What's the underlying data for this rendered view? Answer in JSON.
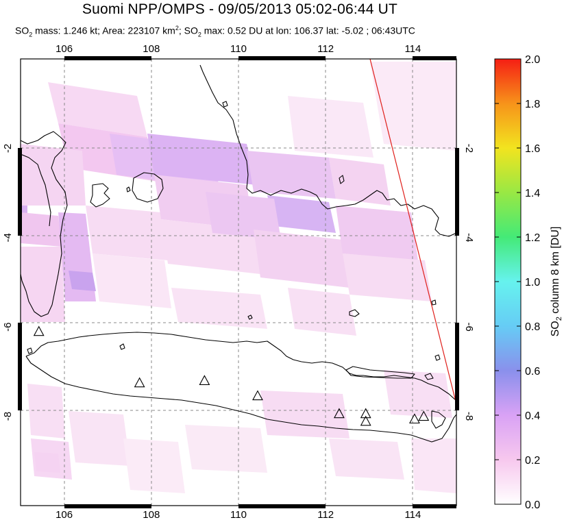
{
  "header": {
    "title": "Suomi NPP/OMPS - 09/05/2013 05:02-06:44 UT",
    "so2_mass_label": "SO",
    "so2_mass_rest": " mass: 1.246 kt; Area: 223107 km",
    "area_sup": "2",
    "so2_max_label": "; SO",
    "so2_max_rest": " max: 0.52 DU at lon: 106.37 lat: -5.02 ; 06:43UTC",
    "sub2": "2"
  },
  "map": {
    "lon_range": [
      105.0,
      115.0
    ],
    "lat_range": [
      -10.0,
      0.0
    ],
    "lon_ticks": [
      "106",
      "108",
      "110",
      "112",
      "114"
    ],
    "lon_tick_values": [
      106,
      108,
      110,
      112,
      114
    ],
    "lat_ticks": [
      "-2",
      "-4",
      "-6",
      "-8"
    ],
    "lat_tick_values": [
      -2,
      -4,
      -6,
      -8
    ],
    "volcanoes": [
      {
        "lon": 105.42,
        "lat": -6.1
      },
      {
        "lon": 107.73,
        "lat": -7.25
      },
      {
        "lon": 109.22,
        "lat": -7.2
      },
      {
        "lon": 110.44,
        "lat": -7.54
      },
      {
        "lon": 112.31,
        "lat": -7.94
      },
      {
        "lon": 112.92,
        "lat": -7.94
      },
      {
        "lon": 112.92,
        "lat": -8.11
      },
      {
        "lon": 114.04,
        "lat": -8.06
      },
      {
        "lon": 114.25,
        "lat": -8.0
      }
    ],
    "swath_edge_color": "#e0201c"
  },
  "colorbar": {
    "label_main": "SO",
    "label_sub": "2",
    "label_rest": " column 8 km [DU]",
    "ticks": [
      "2.0",
      "1.8",
      "1.6",
      "1.4",
      "1.2",
      "1.0",
      "0.8",
      "0.6",
      "0.4",
      "0.2",
      "0.0"
    ],
    "tick_values": [
      2.0,
      1.8,
      1.6,
      1.4,
      1.2,
      1.0,
      0.8,
      0.6,
      0.4,
      0.2,
      0.0
    ],
    "range": [
      0.0,
      2.0
    ]
  }
}
